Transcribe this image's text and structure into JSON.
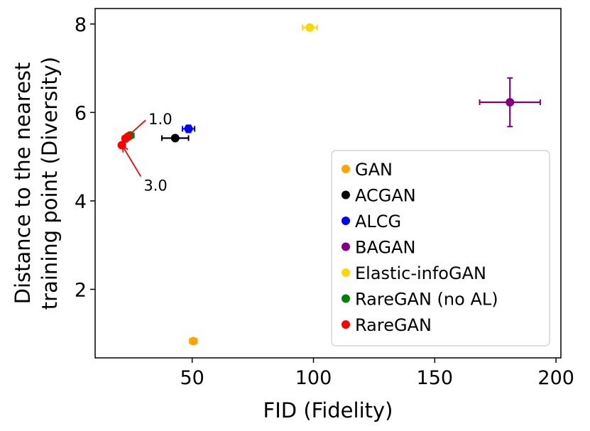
{
  "chart_data": {
    "type": "scatter",
    "title": "",
    "xlabel": "FID (Fidelity)",
    "ylabel_lines": [
      "Distance to the nearest",
      "training point (Diversity)"
    ],
    "xlim": [
      10,
      202
    ],
    "ylim": [
      0.45,
      8.35
    ],
    "xticks": [
      50,
      100,
      150,
      200
    ],
    "yticks": [
      2,
      4,
      6,
      8
    ],
    "grid": false,
    "legend_position": "lower-right",
    "series": [
      {
        "name": "GAN",
        "color": "#ffa500",
        "points": [
          {
            "x": 50.5,
            "y": 0.83,
            "xerr": 1.5,
            "yerr": 0.05
          }
        ]
      },
      {
        "name": "ACGAN",
        "color": "#000000",
        "points": [
          {
            "x": 43,
            "y": 5.42,
            "xerr": 5.5,
            "yerr": 0.05
          }
        ]
      },
      {
        "name": "ALCG",
        "color": "#0000ff",
        "points": [
          {
            "x": 48.5,
            "y": 5.63,
            "xerr": 2.5,
            "yerr": 0.08
          }
        ]
      },
      {
        "name": "BAGAN",
        "color": "#800080",
        "points": [
          {
            "x": 181,
            "y": 6.23,
            "xerr": 12.5,
            "yerr": 0.55
          }
        ]
      },
      {
        "name": "Elastic-infoGAN",
        "color": "#ffd700",
        "points": [
          {
            "x": 98.5,
            "y": 7.92,
            "xerr": 3.0,
            "yerr": 0.05
          }
        ]
      },
      {
        "name": "RareGAN (no AL)",
        "color": "#008000",
        "points": [
          {
            "x": 24.5,
            "y": 5.48,
            "xerr": 1.5,
            "yerr": 0.06
          }
        ]
      },
      {
        "name": "RareGAN",
        "color": "#ff0000",
        "points": [
          {
            "x": 21,
            "y": 5.26,
            "xerr": 1.0,
            "yerr": 0.04
          },
          {
            "x": 22.5,
            "y": 5.41,
            "xerr": 1.0,
            "yerr": 0.04
          },
          {
            "x": 23.5,
            "y": 5.45,
            "xerr": 1.0,
            "yerr": 0.04
          }
        ]
      }
    ],
    "annotations": [
      {
        "text": "1.0",
        "x": 32,
        "y": 5.73,
        "arrow_to_x": 22.8,
        "arrow_to_y": 5.43
      },
      {
        "text": "3.0",
        "x": 30,
        "y": 4.23,
        "arrow_to_x": 21.3,
        "arrow_to_y": 5.24
      }
    ]
  }
}
